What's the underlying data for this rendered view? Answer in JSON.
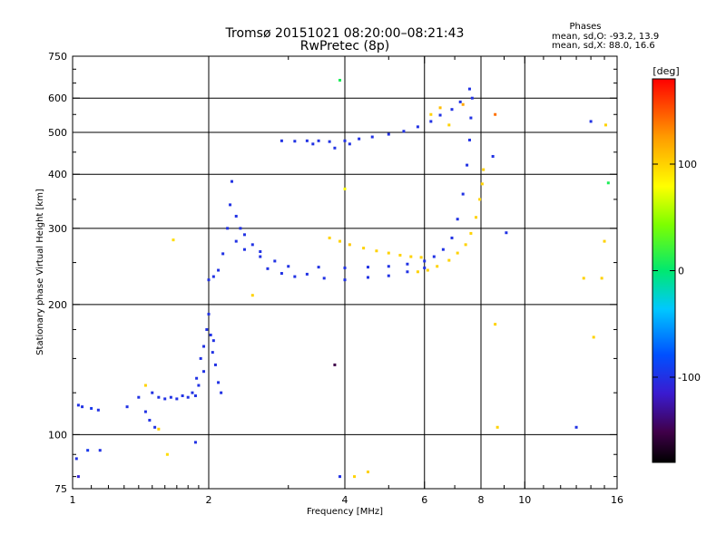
{
  "title_line1": "Tromsø 20151021 08:20:00–08:21:43",
  "title_line2": "RwPretec (8p)",
  "phases": {
    "header": "Phases",
    "line_o": "mean, sd,O: -93.2, 13.9",
    "line_x": "mean, sd,X:  88.0, 16.6"
  },
  "colorbar": {
    "unit_label": "[deg]",
    "ticks": [
      "100",
      "0",
      "-100"
    ],
    "tick_values": [
      100,
      0,
      -100
    ],
    "range": [
      -180,
      180
    ]
  },
  "chart_data": {
    "type": "scatter",
    "title": "Tromsø 20151021 08:20:00–08:21:43",
    "subtitle": "RwPretec (8p)",
    "xlabel": "Frequency [MHz]",
    "ylabel": "Stationary phase Virtual Height [km]",
    "xscale": "log",
    "yscale": "log",
    "xlim": [
      1,
      16
    ],
    "ylim": [
      75,
      750
    ],
    "x_ticks": [
      1,
      2,
      4,
      6,
      8,
      10,
      16
    ],
    "x_tick_labels": [
      "1",
      "2",
      "4",
      "6",
      "8",
      "10",
      "16"
    ],
    "y_ticks": [
      75,
      100,
      200,
      300,
      400,
      500,
      600,
      750
    ],
    "y_tick_labels": [
      "75",
      "100",
      "200",
      "300",
      "400",
      "500",
      "600",
      "750"
    ],
    "x_grid": [
      2,
      4,
      6,
      8,
      10
    ],
    "y_grid": [
      100,
      200,
      300,
      400,
      500,
      600
    ],
    "grid": true,
    "color_by": "phase (deg)",
    "series": [
      {
        "points": [
          [
            1.03,
            117,
            -100
          ],
          [
            1.05,
            116,
            -100
          ],
          [
            1.1,
            115,
            -95
          ],
          [
            1.14,
            114,
            -100
          ],
          [
            1.02,
            88,
            -100
          ],
          [
            1.08,
            92,
            -95
          ],
          [
            1.15,
            92,
            -100
          ],
          [
            1.03,
            80,
            -110
          ],
          [
            1.32,
            116,
            -100
          ],
          [
            1.4,
            122,
            -100
          ],
          [
            1.45,
            113,
            -100
          ],
          [
            1.48,
            108,
            -100
          ],
          [
            1.52,
            104,
            -100
          ],
          [
            1.5,
            125,
            -100
          ],
          [
            1.55,
            122,
            -100
          ],
          [
            1.6,
            121,
            -100
          ],
          [
            1.65,
            122,
            -100
          ],
          [
            1.7,
            121,
            -100
          ],
          [
            1.75,
            123,
            -100
          ],
          [
            1.8,
            122,
            -100
          ],
          [
            1.84,
            125,
            -100
          ],
          [
            1.87,
            123,
            -100
          ],
          [
            1.88,
            135,
            -100
          ],
          [
            1.92,
            150,
            -100
          ],
          [
            1.95,
            160,
            -100
          ],
          [
            1.98,
            175,
            -100
          ],
          [
            2.0,
            190,
            -100
          ],
          [
            2.02,
            170,
            -100
          ],
          [
            2.04,
            155,
            -100
          ],
          [
            2.07,
            145,
            -100
          ],
          [
            2.1,
            132,
            -100
          ],
          [
            2.13,
            125,
            -100
          ],
          [
            1.95,
            140,
            -100
          ],
          [
            2.05,
            165,
            -100
          ],
          [
            1.9,
            130,
            -100
          ],
          [
            2.0,
            228,
            -100
          ],
          [
            2.05,
            232,
            -100
          ],
          [
            2.1,
            240,
            -100
          ],
          [
            2.15,
            262,
            -100
          ],
          [
            2.2,
            300,
            -100
          ],
          [
            2.23,
            340,
            -100
          ],
          [
            2.25,
            385,
            -100
          ],
          [
            2.3,
            320,
            -100
          ],
          [
            2.35,
            300,
            -100
          ],
          [
            2.4,
            290,
            -100
          ],
          [
            2.5,
            275,
            -100
          ],
          [
            2.6,
            265,
            -100
          ],
          [
            2.3,
            280,
            -100
          ],
          [
            2.4,
            268,
            -100
          ],
          [
            2.6,
            258,
            -100
          ],
          [
            2.8,
            252,
            -100
          ],
          [
            2.7,
            242,
            -100
          ],
          [
            2.9,
            236,
            -100
          ],
          [
            3.1,
            232,
            -100
          ],
          [
            3.3,
            235,
            -100
          ],
          [
            3.6,
            230,
            -100
          ],
          [
            4.0,
            228,
            -100
          ],
          [
            4.5,
            231,
            -100
          ],
          [
            5.0,
            233,
            -100
          ],
          [
            5.5,
            238,
            -100
          ],
          [
            6.0,
            243,
            -100
          ],
          [
            3.0,
            245,
            -100
          ],
          [
            3.5,
            244,
            -100
          ],
          [
            4.0,
            243,
            -100
          ],
          [
            4.5,
            244,
            -100
          ],
          [
            5.0,
            245,
            -100
          ],
          [
            5.5,
            248,
            -100
          ],
          [
            6.0,
            252,
            -100
          ],
          [
            6.3,
            258,
            -100
          ],
          [
            6.6,
            268,
            -100
          ],
          [
            6.9,
            285,
            -100
          ],
          [
            7.1,
            315,
            -100
          ],
          [
            7.3,
            360,
            -100
          ],
          [
            7.45,
            420,
            -100
          ],
          [
            7.55,
            480,
            -100
          ],
          [
            7.6,
            540,
            -100
          ],
          [
            7.65,
            600,
            -100
          ],
          [
            7.55,
            630,
            -100
          ],
          [
            2.9,
            478,
            -100
          ],
          [
            3.1,
            477,
            -100
          ],
          [
            3.3,
            478,
            -100
          ],
          [
            3.5,
            478,
            -100
          ],
          [
            3.7,
            476,
            -100
          ],
          [
            4.0,
            478,
            -100
          ],
          [
            4.3,
            483,
            -100
          ],
          [
            4.6,
            488,
            -100
          ],
          [
            5.0,
            495,
            -100
          ],
          [
            5.4,
            503,
            -100
          ],
          [
            5.8,
            515,
            -100
          ],
          [
            6.2,
            530,
            -100
          ],
          [
            6.5,
            548,
            -100
          ],
          [
            6.9,
            565,
            -100
          ],
          [
            7.2,
            588,
            -100
          ],
          [
            3.8,
            460,
            -100
          ],
          [
            4.1,
            470,
            -100
          ],
          [
            3.4,
            470,
            -100
          ],
          [
            3.7,
            285,
            100
          ],
          [
            3.9,
            280,
            100
          ],
          [
            4.1,
            275,
            105
          ],
          [
            4.4,
            270,
            100
          ],
          [
            4.7,
            266,
            100
          ],
          [
            5.0,
            263,
            100
          ],
          [
            5.3,
            260,
            100
          ],
          [
            5.6,
            258,
            100
          ],
          [
            5.9,
            257,
            100
          ],
          [
            5.8,
            238,
            100
          ],
          [
            6.1,
            240,
            100
          ],
          [
            6.4,
            245,
            100
          ],
          [
            6.8,
            253,
            100
          ],
          [
            7.1,
            263,
            100
          ],
          [
            7.4,
            275,
            100
          ],
          [
            7.6,
            292,
            100
          ],
          [
            7.8,
            318,
            100
          ],
          [
            7.95,
            350,
            100
          ],
          [
            8.05,
            380,
            100
          ],
          [
            8.1,
            410,
            100
          ],
          [
            6.2,
            550,
            100
          ],
          [
            6.5,
            570,
            110
          ],
          [
            6.8,
            520,
            100
          ],
          [
            7.3,
            580,
            120
          ],
          [
            1.67,
            282,
            95
          ],
          [
            1.45,
            130,
            100
          ],
          [
            1.55,
            103,
            100
          ],
          [
            1.62,
            90,
            95
          ],
          [
            2.5,
            210,
            100
          ],
          [
            1.87,
            96,
            -100
          ],
          [
            4.0,
            370,
            80
          ],
          [
            3.9,
            660,
            10
          ],
          [
            3.8,
            145,
            -150
          ],
          [
            3.9,
            80,
            -100
          ],
          [
            4.2,
            80,
            100
          ],
          [
            4.5,
            82,
            100
          ],
          [
            8.6,
            550,
            140
          ],
          [
            8.6,
            180,
            100
          ],
          [
            8.7,
            104,
            100
          ],
          [
            8.5,
            440,
            -100
          ],
          [
            9.1,
            293,
            -100
          ],
          [
            13.0,
            104,
            -100
          ],
          [
            14.0,
            530,
            -100
          ],
          [
            14.2,
            168,
            100
          ],
          [
            15.0,
            280,
            100
          ],
          [
            15.3,
            382,
            10
          ],
          [
            15.1,
            520,
            100
          ],
          [
            14.8,
            230,
            100
          ],
          [
            13.5,
            230,
            100
          ]
        ]
      }
    ]
  }
}
